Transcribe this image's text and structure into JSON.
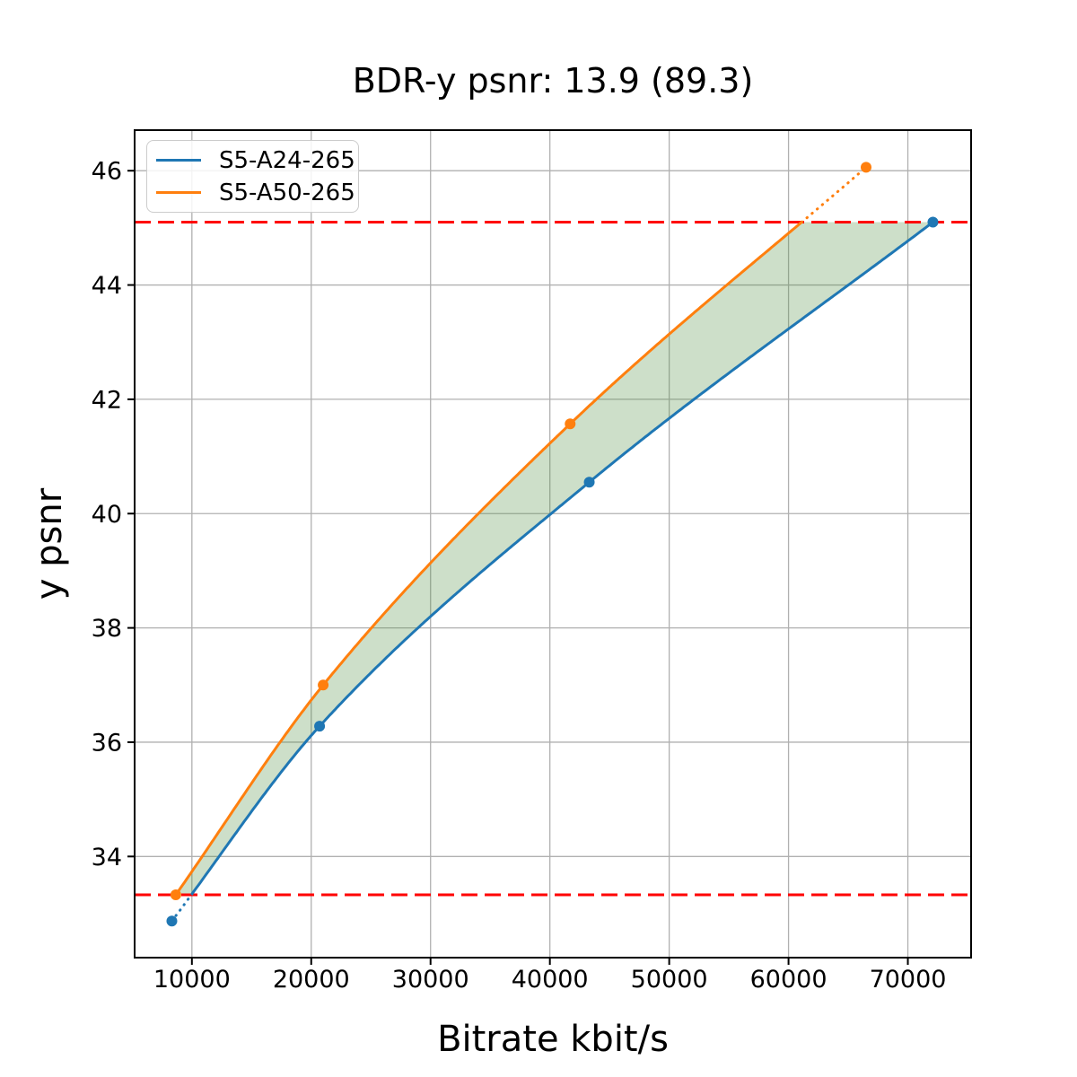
{
  "chart_data": {
    "type": "line",
    "title": "BDR-y psnr: 13.9 (89.3)",
    "xlabel": "Bitrate kbit/s",
    "ylabel": "y psnr",
    "xlim": [
      5200,
      75300
    ],
    "ylim": [
      32.23,
      46.71
    ],
    "x_ticks": [
      10000,
      20000,
      30000,
      40000,
      50000,
      60000,
      70000
    ],
    "y_ticks": [
      34,
      36,
      38,
      40,
      42,
      44,
      46
    ],
    "grid": true,
    "grid_color": "#b0b0b0",
    "legend_position": "upper left",
    "series": [
      {
        "name": "S5-A24-265",
        "color": "#1f77b4",
        "x": [
          8320,
          20700,
          43300,
          72100
        ],
        "y": [
          32.87,
          36.28,
          40.55,
          45.1
        ]
      },
      {
        "name": "S5-A50-265",
        "color": "#ff7f0e",
        "x": [
          8650,
          21000,
          41700,
          66500
        ],
        "y": [
          33.33,
          37.0,
          41.57,
          46.06
        ]
      }
    ],
    "reference_lines": {
      "values": [
        33.33,
        45.1
      ],
      "color": "#ff0000",
      "style": "dashed"
    },
    "shaded_region": {
      "between": [
        "S5-A50-265",
        "S5-A24-265"
      ],
      "y_range": [
        33.33,
        45.1
      ],
      "color": "#4a8c3c",
      "opacity": 0.28
    }
  }
}
